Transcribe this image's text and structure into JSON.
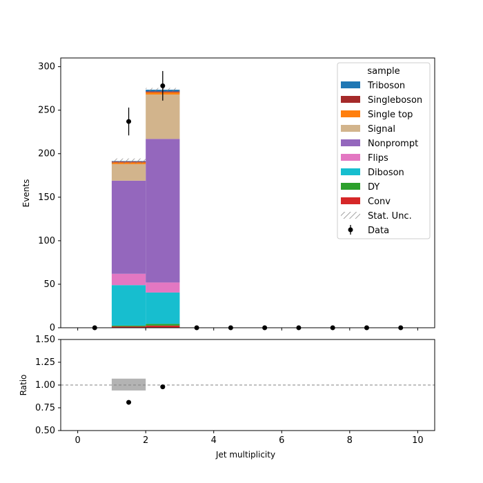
{
  "chart_data": {
    "type": "bar",
    "stacked": true,
    "xlabel": "Jet multiplicity",
    "ylabel": "Events",
    "ratio_ylabel": "Ratio",
    "xlim": [
      -0.5,
      10.5
    ],
    "ylim": [
      0,
      310
    ],
    "ratio_ylim": [
      0.5,
      1.5
    ],
    "xticks": [
      "0",
      "2",
      "4",
      "6",
      "8",
      "10"
    ],
    "xtick_values": [
      0,
      2,
      4,
      6,
      8,
      10
    ],
    "yticks": [
      "0",
      "50",
      "100",
      "150",
      "200",
      "250",
      "300"
    ],
    "ytick_values": [
      0,
      50,
      100,
      150,
      200,
      250,
      300
    ],
    "ratio_yticks": [
      "0.50",
      "0.75",
      "1.00",
      "1.25",
      "1.50"
    ],
    "ratio_ytick_values": [
      0.5,
      0.75,
      1.0,
      1.25,
      1.5
    ],
    "bin_edges": [
      0,
      1,
      2,
      3,
      4,
      5,
      6,
      7,
      8,
      9,
      10
    ],
    "legend_title": "sample",
    "legend_position": "top-right",
    "series": [
      {
        "name": "Conv",
        "color": "#d62728",
        "values": [
          0,
          1.5,
          2.5,
          0,
          0,
          0,
          0,
          0,
          0,
          0
        ]
      },
      {
        "name": "DY",
        "color": "#2ca02c",
        "values": [
          0,
          1,
          2,
          0,
          0,
          0,
          0,
          0,
          0,
          0
        ]
      },
      {
        "name": "Diboson",
        "color": "#17becf",
        "values": [
          0,
          46.5,
          36,
          0,
          0,
          0,
          0,
          0,
          0,
          0
        ]
      },
      {
        "name": "Flips",
        "color": "#e377c2",
        "values": [
          0,
          13,
          11.5,
          0,
          0,
          0,
          0,
          0,
          0,
          0
        ]
      },
      {
        "name": "Nonprompt",
        "color": "#9467bd",
        "values": [
          0,
          107,
          165,
          0,
          0,
          0,
          0,
          0,
          0,
          0
        ]
      },
      {
        "name": "Signal",
        "color": "#d2b48c",
        "values": [
          0,
          19,
          51,
          0,
          0,
          0,
          0,
          0,
          0,
          0
        ]
      },
      {
        "name": "Single top",
        "color": "#ff7f0e",
        "values": [
          0,
          2,
          2.5,
          0,
          0,
          0,
          0,
          0,
          0,
          0
        ]
      },
      {
        "name": "Singleboson",
        "color": "#a52a2a",
        "values": [
          0,
          1,
          1,
          0,
          0,
          0,
          0,
          0,
          0,
          0
        ]
      },
      {
        "name": "Triboson",
        "color": "#1f77b4",
        "values": [
          0,
          0.5,
          2,
          0,
          0,
          0,
          0,
          0,
          0,
          0
        ]
      }
    ],
    "stat_unc": {
      "name": "Stat. Unc.",
      "values": [
        0,
        3,
        2,
        0,
        0,
        0,
        0,
        0,
        0,
        0
      ]
    },
    "data": {
      "name": "Data",
      "color": "#000000",
      "x": [
        0.5,
        1.5,
        2.5,
        3.5,
        4.5,
        5.5,
        6.5,
        7.5,
        8.5,
        9.5
      ],
      "y": [
        0,
        237,
        278,
        0,
        0,
        0,
        0,
        0,
        0,
        0
      ],
      "yerr": [
        0,
        16,
        17,
        0,
        0,
        0,
        0,
        0,
        0,
        0
      ]
    },
    "ratio": {
      "x": [
        1.5,
        2.5
      ],
      "y": [
        0.81,
        0.98
      ],
      "reference_line": 1.0,
      "unc_band": [
        {
          "bin": [
            1,
            2
          ],
          "low": 0.94,
          "high": 1.07
        }
      ]
    }
  }
}
